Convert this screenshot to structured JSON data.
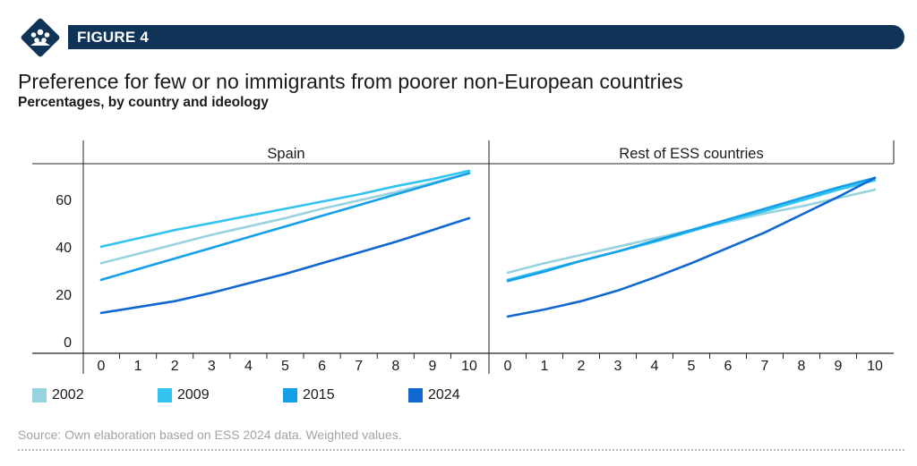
{
  "header": {
    "figure_label": "FIGURE 4",
    "icon": "people-group-icon",
    "accent_color": "#0f3457"
  },
  "title": "Preference for few or no immigrants from poorer non-European countries",
  "subtitle": "Percentages, by country and ideology",
  "source": "Source: Own elaboration based on ESS 2024 data. Weighted values.",
  "chart_data": [
    {
      "type": "line",
      "panel": "Spain",
      "x": [
        0,
        1,
        2,
        3,
        4,
        5,
        6,
        7,
        8,
        9,
        10
      ],
      "ylim": [
        -5,
        75
      ],
      "yticks": [
        0,
        20,
        40,
        60
      ],
      "grid": false,
      "legend_position": "bottom",
      "series": [
        {
          "name": "2002",
          "color": "#97d3df",
          "values": [
            33,
            37,
            41,
            45,
            48.5,
            52,
            56,
            59.5,
            63,
            67,
            71
          ]
        },
        {
          "name": "2009",
          "color": "#33c3ef",
          "values": [
            40,
            43.5,
            47,
            50,
            53,
            56,
            59,
            62,
            65.5,
            68.5,
            72
          ]
        },
        {
          "name": "2015",
          "color": "#14a0e8",
          "values": [
            26,
            30.5,
            35,
            39.5,
            44,
            48.5,
            53,
            57.5,
            62,
            66.5,
            71
          ]
        },
        {
          "name": "2024",
          "color": "#1067cf",
          "values": [
            12,
            14.5,
            17,
            20.5,
            24.5,
            28.5,
            33,
            37.5,
            42,
            47,
            52
          ]
        }
      ]
    },
    {
      "type": "line",
      "panel": "Rest of ESS countries",
      "x": [
        0,
        1,
        2,
        3,
        4,
        5,
        6,
        7,
        8,
        9,
        10
      ],
      "ylim": [
        -5,
        75
      ],
      "grid": false,
      "series": [
        {
          "name": "2002",
          "color": "#97d3df",
          "values": [
            29,
            33,
            36.5,
            40,
            43.5,
            47,
            50.5,
            54,
            57,
            60.5,
            64
          ]
        },
        {
          "name": "2009",
          "color": "#33c3ef",
          "values": [
            26,
            30,
            34,
            38,
            42,
            46.5,
            51,
            55,
            59.5,
            64,
            68
          ]
        },
        {
          "name": "2015",
          "color": "#14a0e8",
          "values": [
            25.5,
            29.5,
            34,
            38,
            42.5,
            47,
            51.5,
            56,
            60.5,
            65,
            69
          ]
        },
        {
          "name": "2024",
          "color": "#1067cf",
          "values": [
            10.5,
            13.5,
            17,
            21.5,
            27,
            33,
            39.5,
            46,
            53.5,
            61,
            69
          ]
        }
      ]
    }
  ]
}
